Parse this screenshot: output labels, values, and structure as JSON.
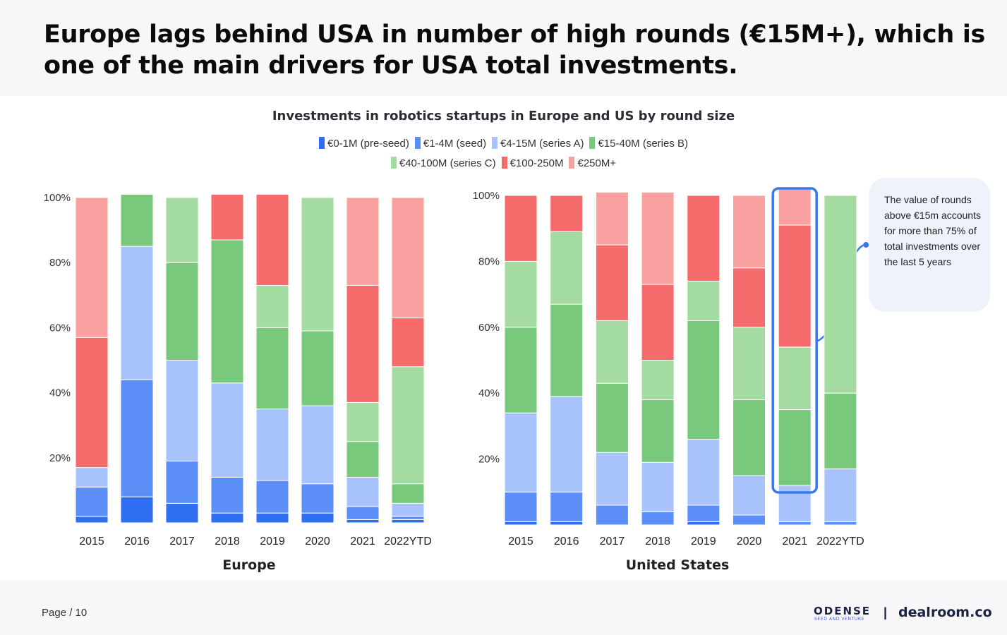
{
  "header": {
    "title": "Europe lags behind USA in number of high rounds (€15M+), which is one of the main drivers for USA total investments."
  },
  "chart_data": {
    "type": "bar",
    "stacked": true,
    "title": "Investments in robotics startups in Europe and US by round size",
    "legend": [
      {
        "label": "€0-1M (pre-seed)",
        "color": "#2f6ef0"
      },
      {
        "label": "€1-4M (seed)",
        "color": "#5b8ff7"
      },
      {
        "label": "€4-15M (series A)",
        "color": "#a8c3fb"
      },
      {
        "label": "€15-40M (series B)",
        "color": "#79c97c"
      },
      {
        "label": "€40-100M (series C)",
        "color": "#a3dba0"
      },
      {
        "label": "€100-250M",
        "color": "#f56a6a"
      },
      {
        "label": "€250M+",
        "color": "#f9a0a0"
      }
    ],
    "ylim": [
      0,
      100
    ],
    "yticks": [
      "20%",
      "40%",
      "60%",
      "80%",
      "100%"
    ],
    "panels": [
      {
        "name": "Europe",
        "categories": [
          "2015",
          "2016",
          "2017",
          "2018",
          "2019",
          "2020",
          "2021",
          "2022YTD"
        ],
        "series": [
          {
            "name": "€0-1M (pre-seed)",
            "values": [
              2,
              8,
              6,
              3,
              3,
              3,
              1,
              1
            ]
          },
          {
            "name": "€1-4M (seed)",
            "values": [
              9,
              36,
              13,
              11,
              10,
              9,
              4,
              1
            ]
          },
          {
            "name": "€4-15M (series A)",
            "values": [
              6,
              41,
              31,
              29,
              22,
              24,
              9,
              4
            ]
          },
          {
            "name": "€15-40M (series B)",
            "values": [
              0,
              16,
              30,
              44,
              25,
              23,
              11,
              6
            ]
          },
          {
            "name": "€40-100M (series C)",
            "values": [
              0,
              0,
              20,
              0,
              13,
              41,
              12,
              36
            ]
          },
          {
            "name": "€100-250M",
            "values": [
              40,
              0,
              0,
              14,
              28,
              0,
              36,
              15
            ]
          },
          {
            "name": "€250M+",
            "values": [
              43,
              0,
              0,
              0,
              0,
              0,
              27,
              37
            ]
          }
        ]
      },
      {
        "name": "United States",
        "categories": [
          "2015",
          "2016",
          "2017",
          "2018",
          "2019",
          "2020",
          "2021",
          "2022YTD"
        ],
        "series": [
          {
            "name": "€0-1M (pre-seed)",
            "values": [
              1,
              1,
              0,
              0,
              1,
              0,
              0,
              0
            ]
          },
          {
            "name": "€1-4M (seed)",
            "values": [
              9,
              9,
              6,
              4,
              5,
              3,
              1,
              1
            ]
          },
          {
            "name": "€4-15M (series A)",
            "values": [
              24,
              29,
              16,
              15,
              20,
              12,
              11,
              16
            ]
          },
          {
            "name": "€15-40M (series B)",
            "values": [
              26,
              28,
              21,
              19,
              36,
              23,
              23,
              23
            ]
          },
          {
            "name": "€40-100M (series C)",
            "values": [
              20,
              22,
              19,
              12,
              12,
              22,
              19,
              60
            ]
          },
          {
            "name": "€100-250M",
            "values": [
              20,
              11,
              23,
              23,
              26,
              18,
              37,
              0
            ]
          },
          {
            "name": "€250M+",
            "values": [
              0,
              0,
              16,
              28,
              0,
              22,
              11,
              0
            ]
          }
        ]
      }
    ],
    "highlight": {
      "panel": "United States",
      "category": "2021"
    },
    "annotation": "The value of rounds above €15m accounts for more than 75% of total investments over the last 5 years"
  },
  "footer": {
    "page_label": "Page / 10",
    "logo_odense": "ODENSE",
    "logo_odense_sub": "SEED AND VENTURE",
    "separator": "|",
    "logo_dealroom": "dealroom.co"
  }
}
